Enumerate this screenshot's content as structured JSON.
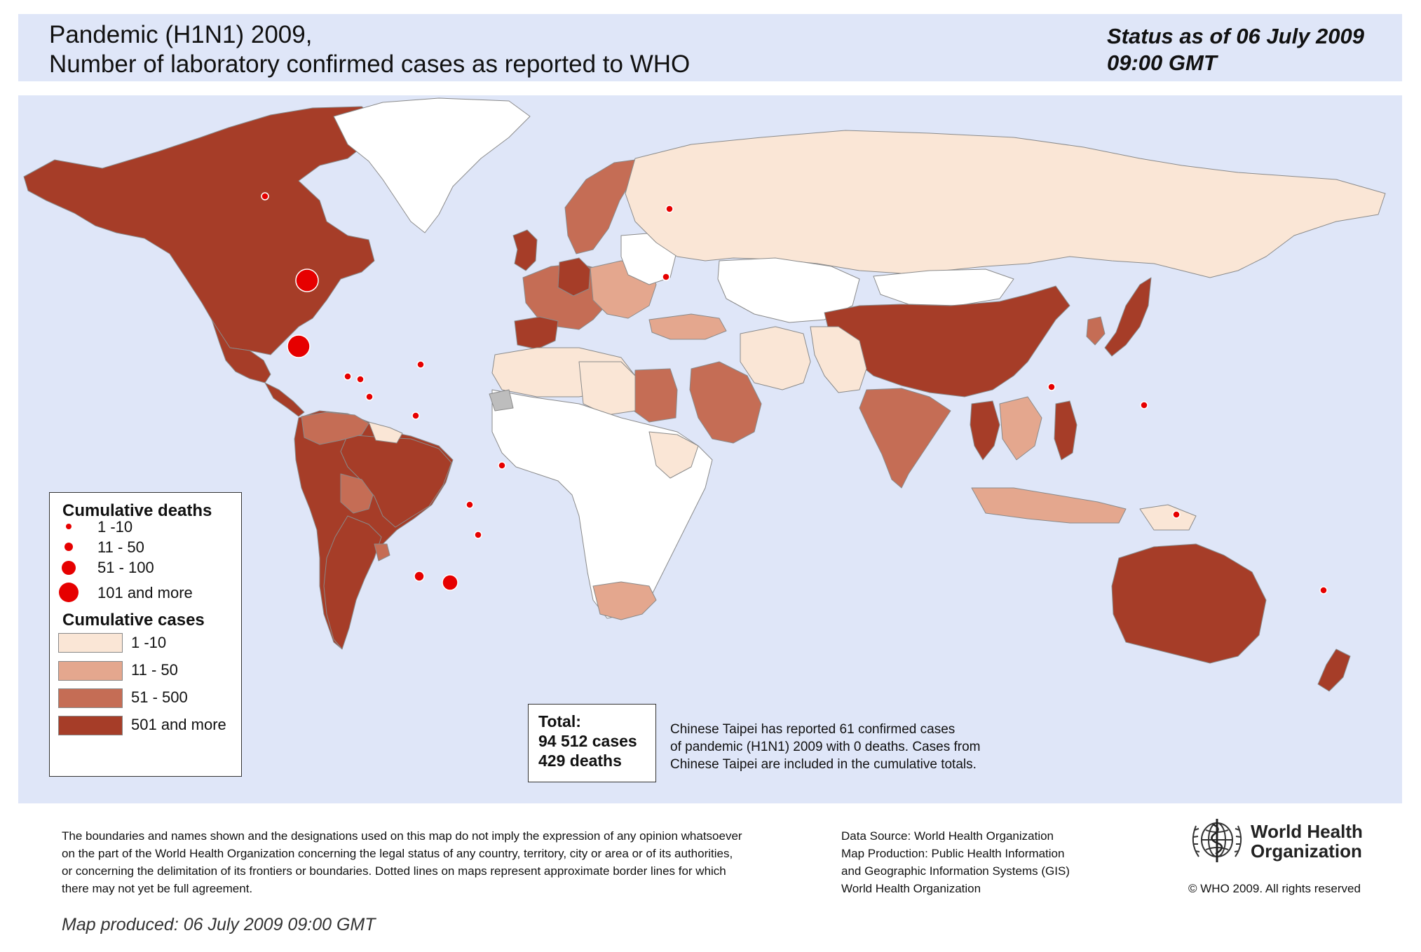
{
  "header": {
    "title_line1": "Pandemic (H1N1) 2009,",
    "title_line2": "Number of  laboratory confirmed cases as reported to WHO",
    "status_line1": "Status as of 06 July 2009",
    "status_line2": "09:00 GMT"
  },
  "colors": {
    "ocean": "#dfe6f8",
    "cases_1_10": "#fae6d6",
    "cases_11_50": "#e4a78e",
    "cases_51_500": "#c56d55",
    "cases_501_plus": "#a63d28",
    "no_cases": "#ffffff",
    "not_applicable": "#bdbdbd",
    "death_marker": "#e60000"
  },
  "legend": {
    "deaths_title": "Cumulative deaths",
    "deaths": [
      {
        "label": "1 -10"
      },
      {
        "label": "11 - 50"
      },
      {
        "label": "51 - 100"
      },
      {
        "label": "101 and more"
      }
    ],
    "cases_title": "Cumulative cases",
    "cases": [
      {
        "label": "1 -10",
        "color": "#fae6d6"
      },
      {
        "label": "11 - 50",
        "color": "#e4a78e"
      },
      {
        "label": "51 - 500",
        "color": "#c56d55"
      },
      {
        "label": "501 and more",
        "color": "#a63d28"
      }
    ]
  },
  "total": {
    "label": "Total:",
    "cases": "94 512 cases",
    "deaths": "429 deaths"
  },
  "taipei_note": {
    "line1": "Chinese Taipei has reported 61 confirmed cases",
    "line2": "of pandemic (H1N1) 2009 with 0 deaths. Cases from",
    "line3": "Chinese Taipei are included in the cumulative totals."
  },
  "footer": {
    "disclaimer": [
      "The boundaries and names shown and the designations used on this map do not imply the expression of any opinion whatsoever",
      "on the part of the World Health Organization concerning the legal status of any country, territory, city or area or of its authorities,",
      "or concerning the delimitation of its frontiers or boundaries.  Dotted lines on maps represent approximate border lines for which",
      "there may not yet be full agreement."
    ],
    "data_source": [
      "Data Source: World Health Organization",
      "Map Production: Public Health Information",
      "and Geographic Information Systems (GIS)",
      "World Health Organization"
    ],
    "who_name_line1": "World Health",
    "who_name_line2": "Organization",
    "copyright": "© WHO 2009. All rights reserved",
    "map_produced": "Map produced: 06 July 2009 09:00 GMT"
  },
  "map": {
    "regions": [
      {
        "name": "north-america",
        "category": "cases_501_plus"
      },
      {
        "name": "mexico",
        "category": "cases_501_plus"
      },
      {
        "name": "central-america",
        "category": "cases_501_plus"
      },
      {
        "name": "greenland",
        "category": "no_cases"
      },
      {
        "name": "south-america",
        "category": "cases_501_plus"
      },
      {
        "name": "brazil",
        "category": "cases_501_plus"
      },
      {
        "name": "argentina-chile",
        "category": "cases_501_plus"
      },
      {
        "name": "colombia-venezuela",
        "category": "cases_51_500"
      },
      {
        "name": "bolivia-paraguay",
        "category": "cases_51_500"
      },
      {
        "name": "uruguay",
        "category": "cases_51_500"
      },
      {
        "name": "guianas",
        "category": "cases_1_10"
      },
      {
        "name": "western-europe",
        "category": "cases_51_500"
      },
      {
        "name": "united-kingdom",
        "category": "cases_501_plus"
      },
      {
        "name": "spain",
        "category": "cases_501_plus"
      },
      {
        "name": "germany",
        "category": "cases_501_plus"
      },
      {
        "name": "scandinavia",
        "category": "cases_51_500"
      },
      {
        "name": "eastern-europe",
        "category": "cases_11_50"
      },
      {
        "name": "belarus-ukraine",
        "category": "no_cases"
      },
      {
        "name": "russia",
        "category": "cases_1_10"
      },
      {
        "name": "kazakhstan-central-asia",
        "category": "no_cases"
      },
      {
        "name": "mongolia",
        "category": "no_cases"
      },
      {
        "name": "china",
        "category": "cases_501_plus"
      },
      {
        "name": "japan",
        "category": "cases_501_plus"
      },
      {
        "name": "korea",
        "category": "cases_51_500"
      },
      {
        "name": "india",
        "category": "cases_51_500"
      },
      {
        "name": "pakistan-afghanistan",
        "category": "cases_1_10"
      },
      {
        "name": "iran",
        "category": "cases_1_10"
      },
      {
        "name": "turkey",
        "category": "cases_11_50"
      },
      {
        "name": "saudi-arabia",
        "category": "cases_51_500"
      },
      {
        "name": "egypt",
        "category": "cases_51_500"
      },
      {
        "name": "north-africa",
        "category": "cases_1_10"
      },
      {
        "name": "libya",
        "category": "cases_1_10"
      },
      {
        "name": "sub-saharan-africa",
        "category": "no_cases"
      },
      {
        "name": "east-africa",
        "category": "cases_1_10"
      },
      {
        "name": "south-africa",
        "category": "cases_11_50"
      },
      {
        "name": "western-sahara",
        "category": "not_applicable"
      },
      {
        "name": "thailand",
        "category": "cases_501_plus"
      },
      {
        "name": "southeast-asia",
        "category": "cases_11_50"
      },
      {
        "name": "philippines",
        "category": "cases_501_plus"
      },
      {
        "name": "indonesia",
        "category": "cases_11_50"
      },
      {
        "name": "papua-new-guinea",
        "category": "cases_1_10"
      },
      {
        "name": "australia",
        "category": "cases_501_plus"
      },
      {
        "name": "new-zealand",
        "category": "cases_501_plus"
      }
    ],
    "deaths_markers": [
      {
        "name": "canada",
        "class": "1 -10"
      },
      {
        "name": "united-states",
        "class": "101 and more"
      },
      {
        "name": "mexico",
        "class": "101 and more"
      },
      {
        "name": "guatemala",
        "class": "1 -10"
      },
      {
        "name": "el-salvador",
        "class": "1 -10"
      },
      {
        "name": "costa-rica",
        "class": "1 -10"
      },
      {
        "name": "dominican-republic",
        "class": "1 -10"
      },
      {
        "name": "colombia",
        "class": "1 -10"
      },
      {
        "name": "brazil",
        "class": "1 -10"
      },
      {
        "name": "paraguay",
        "class": "1 -10"
      },
      {
        "name": "uruguay",
        "class": "1 -10"
      },
      {
        "name": "chile",
        "class": "11 - 50"
      },
      {
        "name": "argentina",
        "class": "51 - 100"
      },
      {
        "name": "united-kingdom",
        "class": "1 -10"
      },
      {
        "name": "spain",
        "class": "1 -10"
      },
      {
        "name": "thailand",
        "class": "1 -10"
      },
      {
        "name": "philippines",
        "class": "1 -10"
      },
      {
        "name": "australia",
        "class": "1 -10"
      },
      {
        "name": "new-zealand",
        "class": "1 -10"
      }
    ]
  }
}
